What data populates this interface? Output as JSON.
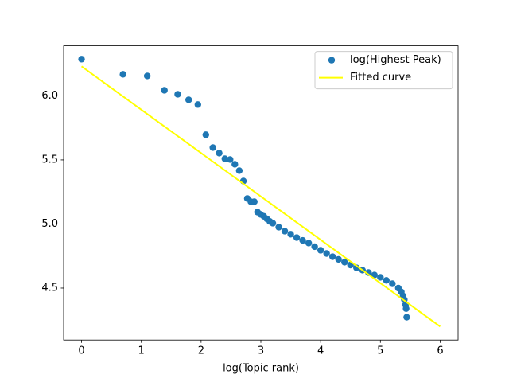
{
  "chart_data": {
    "type": "scatter",
    "xlabel": "log(Topic rank)",
    "xlim": [
      -0.3,
      6.3
    ],
    "ylim": [
      4.095,
      6.39
    ],
    "xticks": [
      0,
      1,
      2,
      3,
      4,
      5,
      6
    ],
    "yticks": [
      4.5,
      {
        "value": 5,
        "label": "5.0"
      },
      5.5,
      {
        "value": 6,
        "label": "6.0"
      }
    ],
    "legend": "upper right",
    "series": [
      {
        "name": "log(Highest Peak)",
        "type": "scatter",
        "color": "#1f77b4",
        "x": [
          0,
          0.693,
          1.099,
          1.386,
          1.609,
          1.792,
          1.946,
          2.079,
          2.197,
          2.303,
          2.398,
          2.485,
          2.565,
          2.639,
          2.708,
          2.773,
          2.833,
          2.89,
          2.944,
          2.996,
          3.05,
          3.1,
          3.15,
          3.2,
          3.3,
          3.4,
          3.5,
          3.6,
          3.7,
          3.8,
          3.9,
          4.0,
          4.1,
          4.2,
          4.3,
          4.4,
          4.5,
          4.6,
          4.7,
          4.8,
          4.9,
          5.0,
          5.1,
          5.2,
          5.3,
          5.35,
          5.38,
          5.4,
          5.42,
          5.43,
          5.44
        ],
        "values": [
          6.286,
          6.168,
          6.155,
          6.043,
          6.012,
          5.969,
          5.932,
          5.696,
          5.596,
          5.553,
          5.509,
          5.503,
          5.466,
          5.416,
          5.335,
          5.199,
          5.174,
          5.174,
          5.093,
          5.075,
          5.06,
          5.04,
          5.02,
          5.006,
          4.975,
          4.944,
          4.92,
          4.894,
          4.872,
          4.851,
          4.823,
          4.795,
          4.77,
          4.745,
          4.724,
          4.702,
          4.68,
          4.658,
          4.64,
          4.621,
          4.602,
          4.584,
          4.56,
          4.534,
          4.5,
          4.47,
          4.438,
          4.41,
          4.37,
          4.34,
          4.273
        ]
      },
      {
        "name": "Fitted curve",
        "type": "line",
        "color": "yellow",
        "x": [
          0,
          6.0
        ],
        "values": [
          6.23,
          4.2
        ]
      }
    ]
  }
}
